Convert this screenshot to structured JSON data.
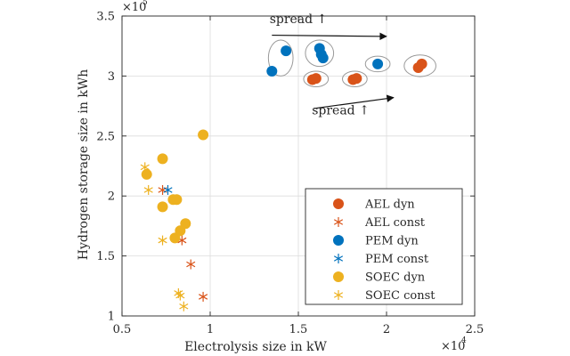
{
  "chart_data": {
    "type": "scatter",
    "xlabel": "Electrolysis size in kW",
    "ylabel": "Hydrogen storage size in kWh",
    "x_multiplier_label": "×10",
    "x_multiplier_exp": "4",
    "y_multiplier_label": "×10",
    "y_multiplier_exp": "5",
    "xlim": [
      0.5,
      2.5
    ],
    "ylim": [
      1,
      3.5
    ],
    "grid": true,
    "legend_position": "bottom-right",
    "xticks": [
      {
        "value": 0.5,
        "label": "0.5"
      },
      {
        "value": 1.0,
        "label": "1"
      },
      {
        "value": 1.5,
        "label": "1.5"
      },
      {
        "value": 2.0,
        "label": "2"
      },
      {
        "value": 2.5,
        "label": "2.5"
      }
    ],
    "yticks": [
      {
        "value": 1.0,
        "label": "1"
      },
      {
        "value": 1.5,
        "label": "1.5"
      },
      {
        "value": 2.0,
        "label": "2"
      },
      {
        "value": 2.5,
        "label": "2.5"
      },
      {
        "value": 3.0,
        "label": "3"
      },
      {
        "value": 3.5,
        "label": "3.5"
      }
    ],
    "series": [
      {
        "name": "AEL dyn",
        "marker": "circle",
        "color": "#d95319",
        "points": [
          [
            1.58,
            2.97
          ],
          [
            1.6,
            2.98
          ],
          [
            1.81,
            2.97
          ],
          [
            1.83,
            2.98
          ],
          [
            2.18,
            3.07
          ],
          [
            2.2,
            3.1
          ]
        ]
      },
      {
        "name": "AEL const",
        "marker": "asterisk",
        "color": "#d95319",
        "points": [
          [
            0.73,
            2.05
          ],
          [
            0.84,
            1.63
          ],
          [
            0.89,
            1.43
          ],
          [
            0.96,
            1.16
          ]
        ]
      },
      {
        "name": "PEM dyn",
        "marker": "circle",
        "color": "#0072bd",
        "points": [
          [
            1.35,
            3.04
          ],
          [
            1.43,
            3.21
          ],
          [
            1.62,
            3.23
          ],
          [
            1.63,
            3.18
          ],
          [
            1.64,
            3.15
          ],
          [
            1.95,
            3.1
          ]
        ]
      },
      {
        "name": "PEM const",
        "marker": "asterisk",
        "color": "#0072bd",
        "points": [
          [
            0.76,
            2.05
          ]
        ]
      },
      {
        "name": "SOEC dyn",
        "marker": "circle",
        "color": "#edb120",
        "points": [
          [
            0.64,
            2.18
          ],
          [
            0.73,
            2.31
          ],
          [
            0.73,
            1.91
          ],
          [
            0.79,
            1.97
          ],
          [
            0.81,
            1.97
          ],
          [
            0.8,
            1.65
          ],
          [
            0.83,
            1.71
          ],
          [
            0.86,
            1.77
          ],
          [
            0.96,
            2.51
          ]
        ]
      },
      {
        "name": "SOEC const",
        "marker": "asterisk",
        "color": "#edb120",
        "points": [
          [
            0.63,
            2.24
          ],
          [
            0.65,
            2.05
          ],
          [
            0.73,
            1.63
          ],
          [
            0.82,
            1.19
          ],
          [
            0.83,
            1.17
          ],
          [
            0.85,
            1.08
          ]
        ]
      }
    ],
    "ellipses": [
      {
        "cx": 1.4,
        "cy": 3.15,
        "rx": 0.07,
        "ry": 0.15
      },
      {
        "cx": 1.62,
        "cy": 3.19,
        "rx": 0.08,
        "ry": 0.11
      },
      {
        "cx": 1.6,
        "cy": 2.975,
        "rx": 0.07,
        "ry": 0.065
      },
      {
        "cx": 1.82,
        "cy": 2.975,
        "rx": 0.07,
        "ry": 0.065
      },
      {
        "cx": 1.95,
        "cy": 3.1,
        "rx": 0.07,
        "ry": 0.065
      },
      {
        "cx": 2.19,
        "cy": 3.085,
        "rx": 0.09,
        "ry": 0.09
      }
    ],
    "annotations": [
      {
        "text": "spread ↑",
        "x": 1.5,
        "y": 3.44,
        "arrow_from": [
          1.35,
          3.34
        ],
        "arrow_to": [
          2.0,
          3.33
        ]
      },
      {
        "text": "spread ↑",
        "x": 1.74,
        "y": 2.68,
        "arrow_from": [
          1.59,
          2.73
        ],
        "arrow_to": [
          2.04,
          2.82
        ]
      }
    ]
  }
}
